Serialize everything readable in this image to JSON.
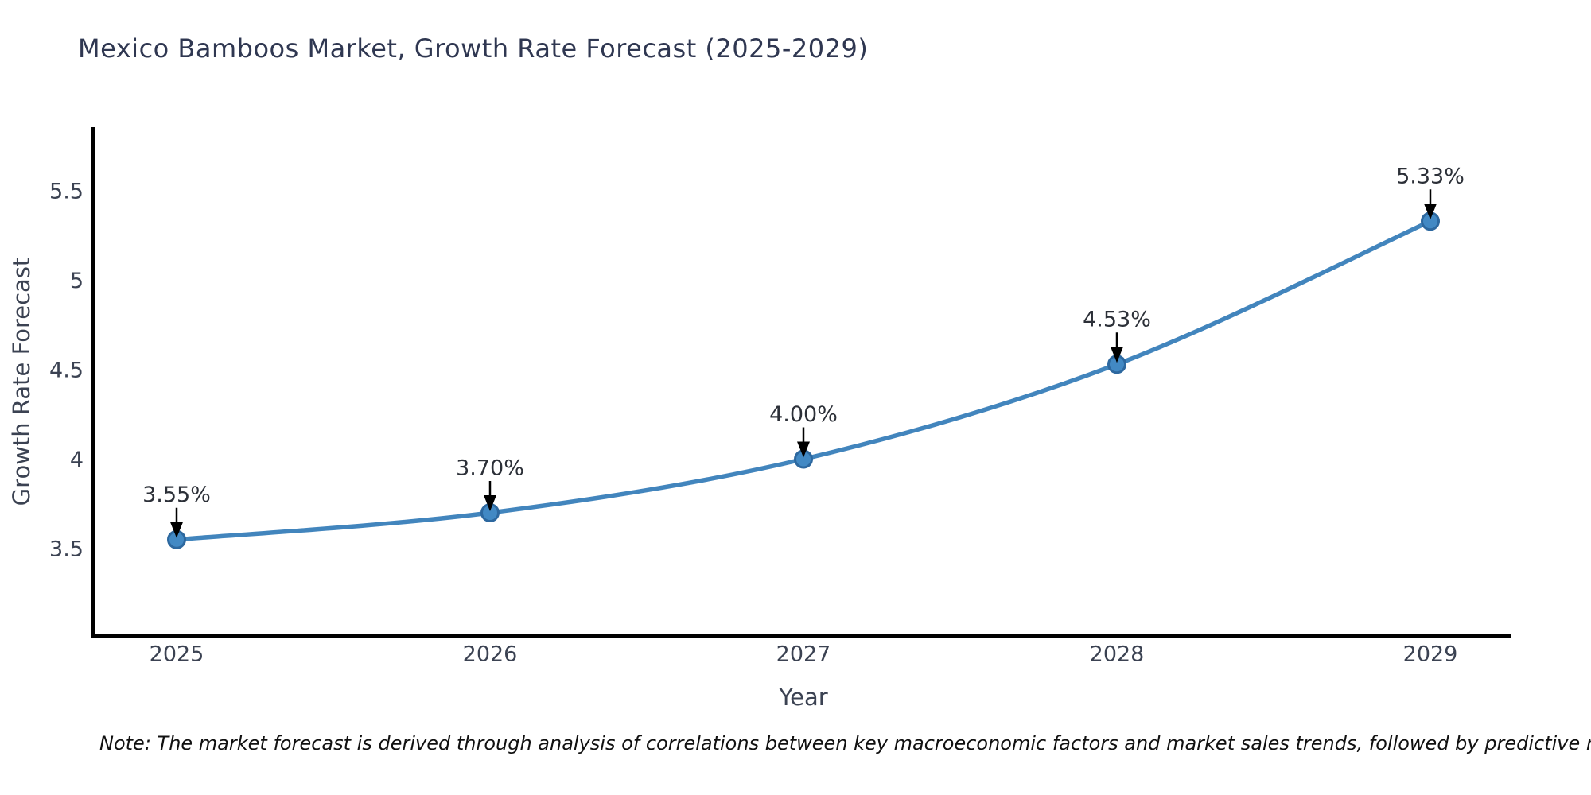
{
  "title": "Mexico Bamboos Market, Growth Rate Forecast (2025-2029)",
  "note": "Note: The market forecast is derived through analysis of correlations between key macroeconomic factors and market sales trends, followed by predictive modeling to project future sales",
  "chart_data": {
    "type": "line",
    "title": "Mexico Bamboos Market, Growth Rate Forecast (2025-2029)",
    "xlabel": "Year",
    "ylabel": "Growth Rate Forecast",
    "x": [
      2025,
      2026,
      2027,
      2028,
      2029
    ],
    "x_tick_labels": [
      "2025",
      "2026",
      "2027",
      "2028",
      "2029"
    ],
    "series": [
      {
        "name": "Growth Rate Forecast",
        "values": [
          3.55,
          3.7,
          4.0,
          4.53,
          5.33
        ],
        "point_labels": [
          "3.55%",
          "3.70%",
          "4.00%",
          "4.53%",
          "5.33%"
        ]
      }
    ],
    "y_ticks": [
      3.5,
      4,
      4.5,
      5,
      5.5
    ],
    "y_tick_labels": [
      "3.5",
      "4",
      "4.5",
      "5",
      "5.5"
    ],
    "ylim": [
      3.0,
      5.9
    ],
    "grid": false,
    "legend": "none",
    "marker": "circle",
    "line_smooth": true,
    "colors": {
      "line": "#4285bd",
      "marker_fill": "#4289c4",
      "marker_edge": "#2d689f",
      "axis": "#000000",
      "tick_text": "#3b4252",
      "annotation_text": "#2c3038",
      "annotation_arrow": "#000000",
      "title_text": "#2f3751",
      "axis_title_text": "#3b4252",
      "note_text": "#111111"
    }
  }
}
